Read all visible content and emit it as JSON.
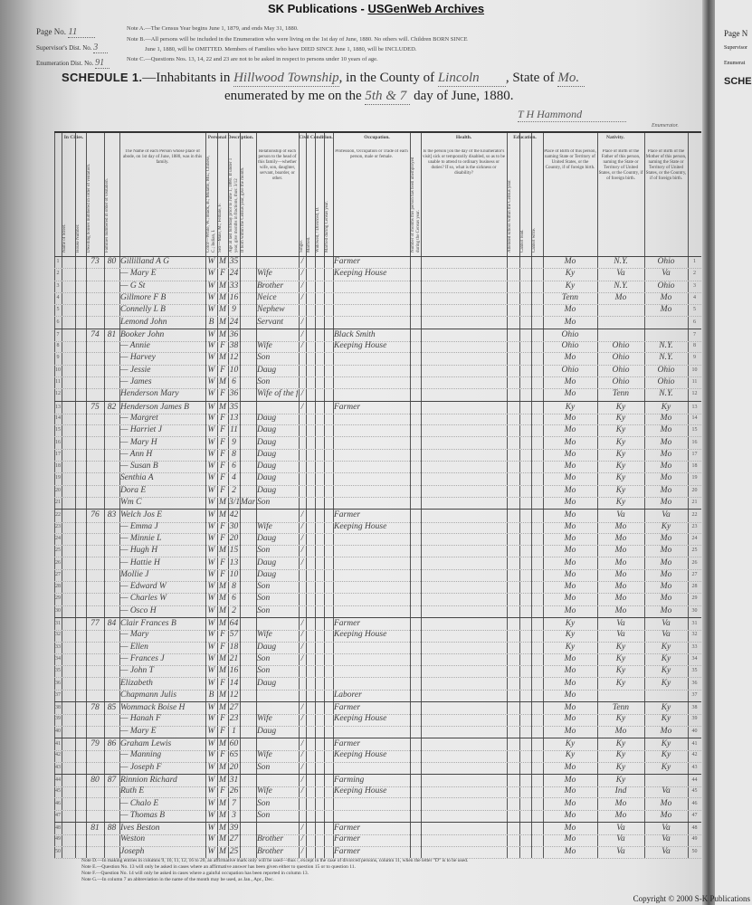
{
  "banner": {
    "prefix": "SK Publications - ",
    "link": "USGenWeb Archives"
  },
  "header": {
    "page_no_label": "Page No.",
    "page_no": "11",
    "supervisor_label": "Supervisor's Dist. No.",
    "supervisor": "3",
    "enumeration_label": "Enumeration Dist. No.",
    "enumeration": "91",
    "note_a": "Note A.—The Census Year begins June 1, 1879, and ends May 31, 1880.",
    "note_b1": "Note B.—All persons will be included in the Enumeration who were living on the 1st day of June, 1880. No others will. Children BORN SINCE",
    "note_b2": "June 1, 1880, will be OMITTED. Members of Families who have DIED SINCE June 1, 1880, will be INCLUDED.",
    "note_c": "Note C.—Questions Nos. 13, 14, 22 and 23 are not to be asked in respect to persons under 10 years of age.",
    "schedule": "SCHEDULE 1.",
    "inhabitants": "—Inhabitants in",
    "township": "Hillwood Township",
    "county_label": ", in the County of",
    "county": "Lincoln",
    "state_label": ", State of",
    "state": "Mo.",
    "enumerated_label": "enumerated by me on the",
    "day": "5th & 7",
    "day_suffix": "day of June, 1880.",
    "enumerator": "T H Hammond",
    "enumerator_label": "Enumerator."
  },
  "columns": {
    "in_cities": "In Cities.",
    "street": "Name of Street.",
    "house": "House Number.",
    "dwelling": "Dwelling houses numbered in order of visitation.",
    "family": "Families numbered in order of visitation.",
    "name": "The Name of each Person whose place of abode, on 1st day of June, 1880, was in this family.",
    "personal": "Personal Description.",
    "color": "Color—White, W.; Black, B.; Mulatto, Mu.; Chinese, C.; Indian, I.",
    "sex": "Sex—Male, M.; Female, F.",
    "age": "Age at last birthday prior to June 1, 1880. If under 1 year, give months in fractions, thus: 3/12",
    "month": "If born within the Census year, give the month.",
    "relation": "Relationship of each person to the head of this family—whether wife, son, daughter, servant, boarder, or other.",
    "civil": "Civil Condition.",
    "single": "Single.",
    "married": "Married.",
    "widowed": "Widowed, / Divorced, D.",
    "married_year": "Married during Census year.",
    "occupation_group": "Occupation.",
    "occupation": "Profession, Occupation or Trade of each person, male or female.",
    "unemployed": "Number of months this person has been unemployed during the Census year.",
    "health_group": "Health.",
    "health": "Is the person [on the day of the Enumerator's visit] sick or temporarily disabled, so as to be unable to attend to ordinary business or duties? If so, what is the sickness or disability?",
    "education_group": "Education.",
    "attended": "Attended school within the Census year.",
    "cannot_read": "Cannot read.",
    "cannot_write": "Cannot write.",
    "nativity_group": "Nativity.",
    "bp_person": "Place of Birth of this person, naming State or Territory of United States, or the Country, if of foreign birth.",
    "bp_father": "Place of Birth of the Father of this person, naming the State or Territory of United States, or the Country, if of foreign birth.",
    "bp_mother": "Place of Birth of the Mother of this person, naming the State or Territory of United States, or the Country, if of foreign birth.",
    "numbers": [
      "1",
      "2",
      "3",
      "4",
      "5",
      "6",
      "7",
      "8",
      "9",
      "10",
      "11",
      "12",
      "13",
      "14",
      "15",
      "20",
      "21",
      "22",
      "23",
      "24",
      "25",
      "26"
    ]
  },
  "rows": [
    {
      "n": "1",
      "d": "73",
      "f": "80",
      "name": "Gillilland A G",
      "c": "W",
      "s": "M",
      "a": "35",
      "r": "",
      "m": "/",
      "occ": "Farmer",
      "b1": "Mo",
      "b2": "N.Y.",
      "b3": "Ohio"
    },
    {
      "n": "2",
      "d": "",
      "f": "",
      "name": "— Mary E",
      "c": "W",
      "s": "F",
      "a": "24",
      "r": "Wife",
      "m": "/",
      "occ": "Keeping House",
      "b1": "Ky",
      "b2": "Va",
      "b3": "Va"
    },
    {
      "n": "3",
      "d": "",
      "f": "",
      "name": "— G St",
      "c": "W",
      "s": "M",
      "a": "33",
      "r": "Brother",
      "m": "/",
      "occ": "",
      "b1": "Ky",
      "b2": "N.Y.",
      "b3": "Ohio"
    },
    {
      "n": "4",
      "d": "",
      "f": "",
      "name": "Gillmore F B",
      "c": "W",
      "s": "M",
      "a": "16",
      "r": "Neice",
      "m": "/",
      "occ": "",
      "b1": "Tenn",
      "b2": "Mo",
      "b3": "Mo"
    },
    {
      "n": "5",
      "d": "",
      "f": "",
      "name": "Connelly L B",
      "c": "W",
      "s": "M",
      "a": "9",
      "r": "Nephew",
      "m": "",
      "occ": "",
      "b1": "Mo",
      "b2": "",
      "b3": "Mo"
    },
    {
      "n": "6",
      "d": "",
      "f": "",
      "name": "Lemond John",
      "c": "B",
      "s": "M",
      "a": "24",
      "r": "Servant",
      "m": "/",
      "occ": "",
      "b1": "Mo",
      "b2": "",
      "b3": ""
    },
    {
      "n": "7",
      "d": "74",
      "f": "81",
      "name": "Booker John",
      "c": "W",
      "s": "M",
      "a": "36",
      "r": "",
      "m": "/",
      "occ": "Black Smith",
      "b1": "Ohio",
      "b2": "",
      "b3": ""
    },
    {
      "n": "8",
      "d": "",
      "f": "",
      "name": "— Annie",
      "c": "W",
      "s": "F",
      "a": "38",
      "r": "Wife",
      "m": "/",
      "occ": "Keeping House",
      "b1": "Ohio",
      "b2": "Ohio",
      "b3": "N.Y."
    },
    {
      "n": "9",
      "d": "",
      "f": "",
      "name": "— Harvey",
      "c": "W",
      "s": "M",
      "a": "12",
      "r": "Son",
      "m": "",
      "occ": "",
      "b1": "Mo",
      "b2": "Ohio",
      "b3": "N.Y."
    },
    {
      "n": "10",
      "d": "",
      "f": "",
      "name": "— Jessie",
      "c": "W",
      "s": "F",
      "a": "10",
      "r": "Daug",
      "m": "",
      "occ": "",
      "b1": "Ohio",
      "b2": "Ohio",
      "b3": "Ohio"
    },
    {
      "n": "11",
      "d": "",
      "f": "",
      "name": "— James",
      "c": "W",
      "s": "M",
      "a": "6",
      "r": "Son",
      "m": "",
      "occ": "",
      "b1": "Mo",
      "b2": "Ohio",
      "b3": "Ohio"
    },
    {
      "n": "12",
      "d": "",
      "f": "",
      "name": "Henderson Mary",
      "c": "W",
      "s": "F",
      "a": "36",
      "r": "Wife of the former Henderson",
      "m": "/",
      "occ": "",
      "b1": "Mo",
      "b2": "Tenn",
      "b3": "N.Y."
    },
    {
      "n": "13",
      "d": "75",
      "f": "82",
      "name": "Henderson James B",
      "c": "W",
      "s": "M",
      "a": "35",
      "r": "",
      "m": "/",
      "occ": "Farmer",
      "b1": "Ky",
      "b2": "Ky",
      "b3": "Ky"
    },
    {
      "n": "14",
      "d": "",
      "f": "",
      "name": "— Margret",
      "c": "W",
      "s": "F",
      "a": "13",
      "r": "Daug",
      "m": "",
      "occ": "",
      "b1": "Mo",
      "b2": "Ky",
      "b3": "Mo"
    },
    {
      "n": "15",
      "d": "",
      "f": "",
      "name": "— Harriet J",
      "c": "W",
      "s": "F",
      "a": "11",
      "r": "Daug",
      "m": "",
      "occ": "",
      "b1": "Mo",
      "b2": "Ky",
      "b3": "Mo"
    },
    {
      "n": "16",
      "d": "",
      "f": "",
      "name": "— Mary H",
      "c": "W",
      "s": "F",
      "a": "9",
      "r": "Daug",
      "m": "",
      "occ": "",
      "b1": "Mo",
      "b2": "Ky",
      "b3": "Mo"
    },
    {
      "n": "17",
      "d": "",
      "f": "",
      "name": "— Ann H",
      "c": "W",
      "s": "F",
      "a": "8",
      "r": "Daug",
      "m": "",
      "occ": "",
      "b1": "Mo",
      "b2": "Ky",
      "b3": "Mo"
    },
    {
      "n": "18",
      "d": "",
      "f": "",
      "name": "— Susan B",
      "c": "W",
      "s": "F",
      "a": "6",
      "r": "Daug",
      "m": "",
      "occ": "",
      "b1": "Mo",
      "b2": "Ky",
      "b3": "Mo"
    },
    {
      "n": "19",
      "d": "",
      "f": "",
      "name": "Senthia A",
      "c": "W",
      "s": "F",
      "a": "4",
      "r": "Daug",
      "m": "",
      "occ": "",
      "b1": "Mo",
      "b2": "Ky",
      "b3": "Mo"
    },
    {
      "n": "20",
      "d": "",
      "f": "",
      "name": "Dora E",
      "c": "W",
      "s": "F",
      "a": "2",
      "r": "Daug",
      "m": "",
      "occ": "",
      "b1": "Mo",
      "b2": "Ky",
      "b3": "Mo"
    },
    {
      "n": "21",
      "d": "",
      "f": "",
      "name": "Wm C",
      "c": "W",
      "s": "M",
      "a": "3/12",
      "mo": "Mar",
      "r": "Son",
      "m": "",
      "occ": "",
      "b1": "Mo",
      "b2": "Ky",
      "b3": "Mo"
    },
    {
      "n": "22",
      "d": "76",
      "f": "83",
      "name": "Welch Jos E",
      "c": "W",
      "s": "M",
      "a": "42",
      "r": "",
      "m": "/",
      "occ": "Farmer",
      "b1": "Mo",
      "b2": "Va",
      "b3": "Va"
    },
    {
      "n": "23",
      "d": "",
      "f": "",
      "name": "— Emma J",
      "c": "W",
      "s": "F",
      "a": "30",
      "r": "Wife",
      "m": "/",
      "occ": "Keeping House",
      "b1": "Mo",
      "b2": "Mo",
      "b3": "Ky"
    },
    {
      "n": "24",
      "d": "",
      "f": "",
      "name": "— Minnie L",
      "c": "W",
      "s": "F",
      "a": "20",
      "r": "Daug",
      "m": "/",
      "occ": "",
      "b1": "Mo",
      "b2": "Mo",
      "b3": "Mo"
    },
    {
      "n": "25",
      "d": "",
      "f": "",
      "name": "— Hugh H",
      "c": "W",
      "s": "M",
      "a": "15",
      "r": "Son",
      "m": "/",
      "occ": "",
      "b1": "Mo",
      "b2": "Mo",
      "b3": "Mo"
    },
    {
      "n": "26",
      "d": "",
      "f": "",
      "name": "— Hattie H",
      "c": "W",
      "s": "F",
      "a": "13",
      "r": "Daug",
      "m": "/",
      "occ": "",
      "b1": "Mo",
      "b2": "Mo",
      "b3": "Mo"
    },
    {
      "n": "27",
      "d": "",
      "f": "",
      "name": "Mollie J",
      "c": "W",
      "s": "F",
      "a": "10",
      "r": "Daug",
      "m": "",
      "occ": "",
      "b1": "Mo",
      "b2": "Mo",
      "b3": "Mo"
    },
    {
      "n": "28",
      "d": "",
      "f": "",
      "name": "— Edward W",
      "c": "W",
      "s": "M",
      "a": "8",
      "r": "Son",
      "m": "",
      "occ": "",
      "b1": "Mo",
      "b2": "Mo",
      "b3": "Mo"
    },
    {
      "n": "29",
      "d": "",
      "f": "",
      "name": "— Charles W",
      "c": "W",
      "s": "M",
      "a": "6",
      "r": "Son",
      "m": "",
      "occ": "",
      "b1": "Mo",
      "b2": "Mo",
      "b3": "Mo"
    },
    {
      "n": "30",
      "d": "",
      "f": "",
      "name": "— Osco H",
      "c": "W",
      "s": "M",
      "a": "2",
      "r": "Son",
      "m": "",
      "occ": "",
      "b1": "Mo",
      "b2": "Mo",
      "b3": "Mo"
    },
    {
      "n": "31",
      "d": "77",
      "f": "84",
      "name": "Clair Frances B",
      "c": "W",
      "s": "M",
      "a": "64",
      "r": "",
      "m": "/",
      "occ": "Farmer",
      "b1": "Ky",
      "b2": "Va",
      "b3": "Va"
    },
    {
      "n": "32",
      "d": "",
      "f": "",
      "name": "— Mary",
      "c": "W",
      "s": "F",
      "a": "57",
      "r": "Wife",
      "m": "/",
      "occ": "Keeping House",
      "b1": "Ky",
      "b2": "Va",
      "b3": "Va"
    },
    {
      "n": "33",
      "d": "",
      "f": "",
      "name": "— Ellen",
      "c": "W",
      "s": "F",
      "a": "18",
      "r": "Daug",
      "m": "/",
      "occ": "",
      "b1": "Ky",
      "b2": "Ky",
      "b3": "Ky"
    },
    {
      "n": "34",
      "d": "",
      "f": "",
      "name": "— Frances J",
      "c": "W",
      "s": "M",
      "a": "21",
      "r": "Son",
      "m": "/",
      "occ": "",
      "b1": "Mo",
      "b2": "Ky",
      "b3": "Ky"
    },
    {
      "n": "35",
      "d": "",
      "f": "",
      "name": "— John T",
      "c": "W",
      "s": "M",
      "a": "16",
      "r": "Son",
      "m": "",
      "occ": "",
      "b1": "Mo",
      "b2": "Ky",
      "b3": "Ky"
    },
    {
      "n": "36",
      "d": "",
      "f": "",
      "name": "Elizabeth",
      "c": "W",
      "s": "F",
      "a": "14",
      "r": "Daug",
      "m": "",
      "occ": "",
      "b1": "Mo",
      "b2": "Ky",
      "b3": "Ky"
    },
    {
      "n": "37",
      "d": "",
      "f": "",
      "name": "Chapmann Julis",
      "c": "B",
      "s": "M",
      "a": "12",
      "r": "",
      "m": "",
      "occ": "Laborer",
      "b1": "Mo",
      "b2": "",
      "b3": ""
    },
    {
      "n": "38",
      "d": "78",
      "f": "85",
      "name": "Wommack Boise H",
      "c": "W",
      "s": "M",
      "a": "27",
      "r": "",
      "m": "/",
      "occ": "Farmer",
      "b1": "Mo",
      "b2": "Tenn",
      "b3": "Ky"
    },
    {
      "n": "39",
      "d": "",
      "f": "",
      "name": "— Hanah F",
      "c": "W",
      "s": "F",
      "a": "23",
      "r": "Wife",
      "m": "/",
      "occ": "Keeping House",
      "b1": "Mo",
      "b2": "Ky",
      "b3": "Ky"
    },
    {
      "n": "40",
      "d": "",
      "f": "",
      "name": "— Mary E",
      "c": "W",
      "s": "F",
      "a": "1",
      "r": "Daug",
      "m": "",
      "occ": "",
      "b1": "Mo",
      "b2": "Mo",
      "b3": "Mo"
    },
    {
      "n": "41",
      "d": "79",
      "f": "86",
      "name": "Graham Lewis",
      "c": "W",
      "s": "M",
      "a": "60",
      "r": "",
      "m": "/",
      "occ": "Farmer",
      "b1": "Ky",
      "b2": "Ky",
      "b3": "Ky"
    },
    {
      "n": "42",
      "d": "",
      "f": "",
      "name": "— Manning",
      "c": "W",
      "s": "F",
      "a": "65",
      "r": "Wife",
      "m": "/",
      "occ": "Keeping House",
      "b1": "Ky",
      "b2": "Ky",
      "b3": "Ky"
    },
    {
      "n": "43",
      "d": "",
      "f": "",
      "name": "— Joseph F",
      "c": "W",
      "s": "M",
      "a": "20",
      "r": "Son",
      "m": "/",
      "occ": "",
      "b1": "Mo",
      "b2": "Ky",
      "b3": "Ky"
    },
    {
      "n": "44",
      "d": "80",
      "f": "87",
      "name": "Rinnion Richard",
      "c": "W",
      "s": "M",
      "a": "31",
      "r": "",
      "m": "/",
      "occ": "Farming",
      "b1": "Mo",
      "b2": "Ky",
      "b3": ""
    },
    {
      "n": "45",
      "d": "",
      "f": "",
      "name": "Ruth E",
      "c": "W",
      "s": "F",
      "a": "26",
      "r": "Wife",
      "m": "/",
      "occ": "Keeping House",
      "b1": "Mo",
      "b2": "Ind",
      "b3": "Va"
    },
    {
      "n": "46",
      "d": "",
      "f": "",
      "name": "— Chalo E",
      "c": "W",
      "s": "M",
      "a": "7",
      "r": "Son",
      "m": "",
      "occ": "",
      "b1": "Mo",
      "b2": "Mo",
      "b3": "Mo"
    },
    {
      "n": "47",
      "d": "",
      "f": "",
      "name": "— Thomas B",
      "c": "W",
      "s": "M",
      "a": "3",
      "r": "Son",
      "m": "",
      "occ": "",
      "b1": "Mo",
      "b2": "Mo",
      "b3": "Mo"
    },
    {
      "n": "48",
      "d": "81",
      "f": "88",
      "name": "Ives Beston",
      "c": "W",
      "s": "M",
      "a": "39",
      "r": "",
      "m": "/",
      "occ": "Farmer",
      "b1": "Mo",
      "b2": "Va",
      "b3": "Va"
    },
    {
      "n": "49",
      "d": "",
      "f": "",
      "name": "Weston",
      "c": "W",
      "s": "M",
      "a": "27",
      "r": "Brother",
      "m": "/",
      "occ": "Farmer",
      "b1": "Mo",
      "b2": "Va",
      "b3": "Va"
    },
    {
      "n": "50",
      "d": "",
      "f": "",
      "name": "Joseph",
      "c": "W",
      "s": "M",
      "a": "25",
      "r": "Brother",
      "m": "/",
      "occ": "Farmer",
      "b1": "Mo",
      "b2": "Va",
      "b3": "Va"
    }
  ],
  "footnotes": [
    "Note D.—In making entries in columns 9, 10, 11, 12, 16 to 20, an affirmative mark only will be used—thus /, except in the case of divorced persons, column 11, when the letter \"D\" is to be used.",
    "Note E.—Question No. 13 will only be asked in cases where an affirmative answer has been given either to question 15 or to question 11.",
    "Note F.—Question No. 14 will only be asked in cases where a gainful occupation has been reported in column 13.",
    "Note G.—In column 7 an abbreviation in the name of the month may be used, as Jan., Apr., Dec."
  ],
  "next_page": {
    "page_label": "Page N",
    "supervisor": "Supervisor",
    "enumeration": "Enumerat",
    "schedule": "SCHED"
  },
  "copyright": "Copyright © 2000 S-K Publications"
}
